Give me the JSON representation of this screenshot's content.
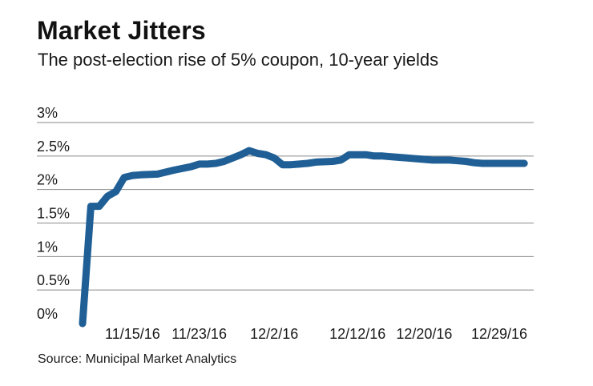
{
  "title": "Market Jitters",
  "subtitle": "The post-election rise of 5% coupon, 10-year yields",
  "source": "Source: Municipal Market Analytics",
  "colors": {
    "line": "#1f5f95",
    "grid": "#8a8a8a"
  },
  "chart_data": {
    "type": "line",
    "title": "Market Jitters",
    "subtitle": "The post-election rise of 5% coupon, 10-year yields",
    "xlabel": "",
    "ylabel": "",
    "ylim": [
      0,
      3
    ],
    "yticks": [
      0,
      0.5,
      1,
      1.5,
      2,
      2.5,
      3
    ],
    "ytick_labels": [
      "0%",
      "0.5%",
      "1%",
      "1.5%",
      "2%",
      "2.5%",
      "3%"
    ],
    "x_range": [
      1,
      54
    ],
    "xticks": [
      {
        "label": "11/15/16",
        "x": 7
      },
      {
        "label": "11/23/16",
        "x": 15
      },
      {
        "label": "12/2/16",
        "x": 24
      },
      {
        "label": "12/12/16",
        "x": 34
      },
      {
        "label": "12/20/16",
        "x": 42
      },
      {
        "label": "12/29/16",
        "x": 51
      }
    ],
    "x_units": "days since 11/8/16",
    "series": [
      {
        "name": "5% coupon, 10-year yield",
        "x": [
          1,
          2,
          3,
          4,
          5,
          6,
          7,
          8,
          10,
          12,
          14,
          15,
          16,
          17,
          18,
          20,
          21,
          22,
          23,
          24,
          25,
          26,
          27,
          28,
          29,
          31,
          32,
          33,
          34,
          35,
          36,
          37,
          38,
          39,
          40,
          41,
          42,
          43,
          44,
          45,
          46,
          47,
          48,
          49,
          50,
          51,
          52,
          53,
          54
        ],
        "values": [
          0,
          1.75,
          1.75,
          1.9,
          1.97,
          2.18,
          2.21,
          2.22,
          2.23,
          2.29,
          2.34,
          2.38,
          2.38,
          2.39,
          2.42,
          2.52,
          2.58,
          2.54,
          2.52,
          2.47,
          2.37,
          2.37,
          2.38,
          2.39,
          2.41,
          2.42,
          2.44,
          2.52,
          2.52,
          2.52,
          2.5,
          2.5,
          2.49,
          2.48,
          2.47,
          2.46,
          2.45,
          2.44,
          2.44,
          2.44,
          2.43,
          2.42,
          2.4,
          2.39,
          2.39,
          2.39,
          2.39,
          2.39,
          2.39
        ]
      }
    ]
  }
}
